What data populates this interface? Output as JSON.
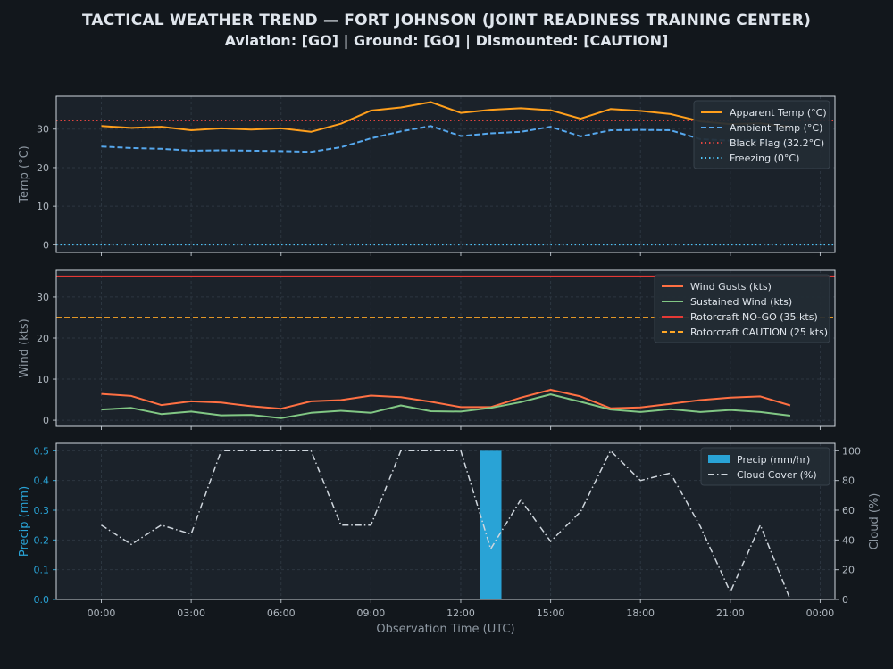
{
  "header": {
    "title": "TACTICAL WEATHER TREND — FORT JOHNSON (JOINT READINESS TRAINING CENTER)",
    "status": "Aviation: [GO]  |  Ground: [GO]  |  Dismounted: [CAUTION]"
  },
  "colors": {
    "background": "#12171c",
    "panel": "#1b222a",
    "apparent": "#ff9f1c",
    "ambient": "#56a8ee",
    "black_flag": "#e0443f",
    "freezing": "#4fc3f7",
    "gusts": "#ff7043",
    "sustained": "#81c784",
    "nogo": "#e53935",
    "caution": "#ffa726",
    "precip": "#29a3d6",
    "cloud": "#cfd6dd"
  },
  "chart_data": [
    {
      "type": "line",
      "ylabel": "Temp (°C)",
      "ylim": [
        -2,
        38.5
      ],
      "yticks": [
        0,
        10,
        20,
        30
      ],
      "x_hours": [
        0,
        1,
        2,
        3,
        4,
        5,
        6,
        7,
        8,
        9,
        10,
        11,
        12,
        13,
        14,
        15,
        16,
        17,
        18,
        19,
        20,
        21,
        22,
        23
      ],
      "series": [
        {
          "name": "Apparent Temp (°C)",
          "style": "solid",
          "color": "#ff9f1c",
          "values": [
            30.8,
            30.3,
            30.6,
            29.7,
            30.2,
            29.9,
            30.2,
            29.3,
            31.4,
            34.8,
            35.6,
            37.0,
            34.2,
            35.0,
            35.4,
            34.9,
            32.7,
            35.2,
            34.7,
            33.9,
            32.0,
            31.3,
            31.5,
            30.6
          ]
        },
        {
          "name": "Ambient Temp (°C)",
          "style": "dashed",
          "color": "#56a8ee",
          "values": [
            25.5,
            25.1,
            24.9,
            24.4,
            24.5,
            24.4,
            24.3,
            24.1,
            25.3,
            27.6,
            29.4,
            30.8,
            28.2,
            28.9,
            29.3,
            30.6,
            28.1,
            29.7,
            29.8,
            29.7,
            27.4,
            27.0,
            27.1,
            26.2
          ]
        }
      ],
      "thresholds": [
        {
          "name": "Black Flag (32.2°C)",
          "value": 32.2,
          "style": "dotted",
          "color": "#e0443f"
        },
        {
          "name": "Freezing (0°C)",
          "value": 0,
          "style": "dotted",
          "color": "#4fc3f7"
        }
      ],
      "legend": "top-right",
      "grid": true
    },
    {
      "type": "line",
      "ylabel": "Wind (kts)",
      "ylim": [
        -1.5,
        36.5
      ],
      "yticks": [
        0,
        10,
        20,
        30
      ],
      "x_hours": [
        0,
        1,
        2,
        3,
        4,
        5,
        6,
        7,
        8,
        9,
        10,
        11,
        12,
        13,
        14,
        15,
        16,
        17,
        18,
        19,
        20,
        21,
        22,
        23
      ],
      "series": [
        {
          "name": "Wind Gusts (kts)",
          "style": "solid",
          "color": "#ff7043",
          "values": [
            6.4,
            5.9,
            3.7,
            4.6,
            4.3,
            3.4,
            2.8,
            4.6,
            4.9,
            6.0,
            5.6,
            4.5,
            3.2,
            3.2,
            5.5,
            7.4,
            5.8,
            2.9,
            3.1,
            4.0,
            4.9,
            5.5,
            5.8,
            3.6
          ]
        },
        {
          "name": "Sustained Wind (kts)",
          "style": "solid",
          "color": "#81c784",
          "values": [
            2.6,
            3.0,
            1.5,
            2.1,
            1.2,
            1.3,
            0.5,
            1.8,
            2.3,
            1.8,
            3.6,
            2.2,
            2.1,
            3.0,
            4.4,
            6.3,
            4.5,
            2.6,
            2.0,
            2.7,
            2.0,
            2.5,
            2.0,
            1.1
          ]
        }
      ],
      "thresholds": [
        {
          "name": "Rotorcraft NO-GO (35 kts)",
          "value": 35,
          "style": "solid",
          "color": "#e53935"
        },
        {
          "name": "Rotorcraft CAUTION (25 kts)",
          "value": 25,
          "style": "dashed",
          "color": "#ffa726"
        }
      ],
      "legend": "top-right",
      "grid": true
    },
    {
      "type": "bar+line",
      "ylabel": "Precip (mm)",
      "ylabel_right": "Cloud (%)",
      "xlabel": "Observation Time (UTC)",
      "ylim": [
        0,
        0.525
      ],
      "ylim_right": [
        0,
        105
      ],
      "yticks": [
        0.0,
        0.1,
        0.2,
        0.3,
        0.4,
        0.5
      ],
      "yticks_right": [
        0,
        20,
        40,
        60,
        80,
        100
      ],
      "x_hours": [
        0,
        1,
        2,
        3,
        4,
        5,
        6,
        7,
        8,
        9,
        10,
        11,
        12,
        13,
        14,
        15,
        16,
        17,
        18,
        19,
        20,
        21,
        22,
        23
      ],
      "xticks": [
        "00:00",
        "03:00",
        "06:00",
        "09:00",
        "12:00",
        "15:00",
        "18:00",
        "21:00",
        "00:00"
      ],
      "series": [
        {
          "name": "Precip (mm/hr)",
          "type": "bar",
          "color": "#29a3d6",
          "values": [
            0,
            0,
            0,
            0,
            0,
            0,
            0,
            0,
            0,
            0,
            0,
            0,
            0,
            0.5,
            0,
            0,
            0,
            0,
            0,
            0,
            0,
            0,
            0,
            0
          ]
        },
        {
          "name": "Cloud Cover (%)",
          "type": "line",
          "style": "dashdot",
          "color": "#cfd6dd",
          "axis": "right",
          "values": [
            50,
            37,
            50,
            44,
            100,
            100,
            100,
            100,
            50,
            50,
            100,
            100,
            100,
            34,
            67,
            39,
            59,
            100,
            80,
            85,
            49,
            5,
            50,
            0
          ]
        }
      ],
      "legend": "top-right",
      "grid": true
    }
  ]
}
